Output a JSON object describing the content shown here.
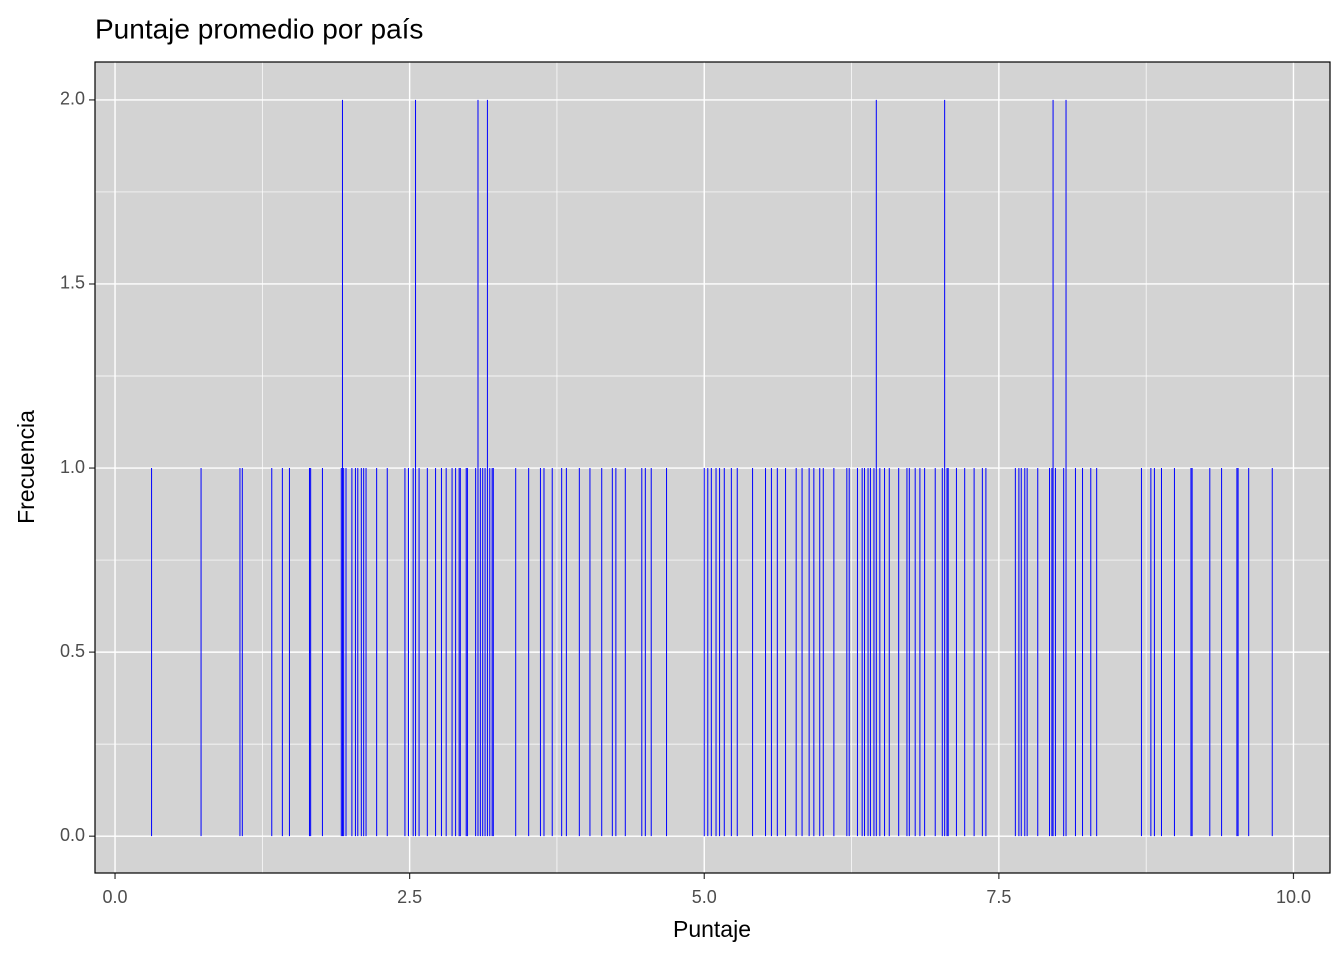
{
  "chart_data": {
    "type": "spike",
    "title": "Puntaje promedio por país",
    "x_label": "Puntaje",
    "y_label": "Frecuencia",
    "color": "#0000ff",
    "panel_color": "#d3d3d3",
    "grid": true,
    "xlim": [
      -0.17,
      10.31
    ],
    "ylim": [
      -0.1,
      2.103
    ],
    "xticks": [
      {
        "value": 0,
        "label": "0.0"
      },
      2.5,
      {
        "value": 5,
        "label": "5.0"
      },
      7.5,
      {
        "value": 10,
        "label": "10.0"
      }
    ],
    "yticks": [
      {
        "value": 0,
        "label": "0.0"
      },
      0.5,
      {
        "value": 1,
        "label": "1.0"
      },
      1.5,
      {
        "value": 2,
        "label": "2.0"
      }
    ],
    "x": [
      0.31,
      0.73,
      1.06,
      1.08,
      1.33,
      1.42,
      1.48,
      1.65,
      1.66,
      1.76,
      1.92,
      1.93,
      1.94,
      1.96,
      2.01,
      2.04,
      2.06,
      2.09,
      2.11,
      2.13,
      2.22,
      2.31,
      2.46,
      2.49,
      2.53,
      2.55,
      2.58,
      2.65,
      2.72,
      2.77,
      2.81,
      2.86,
      2.89,
      2.92,
      2.93,
      2.98,
      2.99,
      3.06,
      3.08,
      3.1,
      3.12,
      3.14,
      3.16,
      3.18,
      3.2,
      3.21,
      3.4,
      3.51,
      3.61,
      3.64,
      3.71,
      3.79,
      3.83,
      3.94,
      4.03,
      4.13,
      4.22,
      4.25,
      4.33,
      4.47,
      4.5,
      4.55,
      4.68,
      5.0,
      5.03,
      5.06,
      5.1,
      5.13,
      5.17,
      5.23,
      5.28,
      5.41,
      5.52,
      5.57,
      5.62,
      5.69,
      5.78,
      5.83,
      5.89,
      5.93,
      5.98,
      6.01,
      6.1,
      6.21,
      6.23,
      6.3,
      6.34,
      6.36,
      6.39,
      6.41,
      6.44,
      6.46,
      6.49,
      6.53,
      6.57,
      6.65,
      6.72,
      6.74,
      6.79,
      6.83,
      6.87,
      6.96,
      7.02,
      7.04,
      7.06,
      7.07,
      7.14,
      7.21,
      7.29,
      7.36,
      7.39,
      7.64,
      7.67,
      7.69,
      7.72,
      7.74,
      7.83,
      7.93,
      7.95,
      7.96,
      7.98,
      8.05,
      8.07,
      8.15,
      8.21,
      8.28,
      8.33,
      8.71,
      8.79,
      8.82,
      8.88,
      8.99,
      9.13,
      9.14,
      9.29,
      9.39,
      9.52,
      9.53,
      9.62,
      9.82
    ],
    "values": [
      1,
      1,
      1,
      1,
      1,
      1,
      1,
      1,
      1,
      1,
      1,
      2,
      1,
      1,
      1,
      1,
      1,
      1,
      1,
      1,
      1,
      1,
      1,
      1,
      1,
      2,
      1,
      1,
      1,
      1,
      1,
      1,
      1,
      1,
      1,
      1,
      1,
      1,
      2,
      1,
      1,
      1,
      2,
      1,
      1,
      1,
      1,
      1,
      1,
      1,
      1,
      1,
      1,
      1,
      1,
      1,
      1,
      1,
      1,
      1,
      1,
      1,
      1,
      1,
      1,
      1,
      1,
      1,
      1,
      1,
      1,
      1,
      1,
      1,
      1,
      1,
      1,
      1,
      1,
      1,
      1,
      1,
      1,
      1,
      1,
      1,
      1,
      1,
      1,
      1,
      1,
      2,
      1,
      1,
      1,
      1,
      1,
      1,
      1,
      1,
      1,
      1,
      1,
      2,
      1,
      1,
      1,
      1,
      1,
      1,
      1,
      1,
      1,
      1,
      1,
      1,
      1,
      1,
      1,
      2,
      1,
      1,
      2,
      1,
      1,
      1,
      1,
      1,
      1,
      1,
      1,
      1,
      1,
      1,
      1,
      1,
      1,
      1,
      1,
      1
    ]
  }
}
